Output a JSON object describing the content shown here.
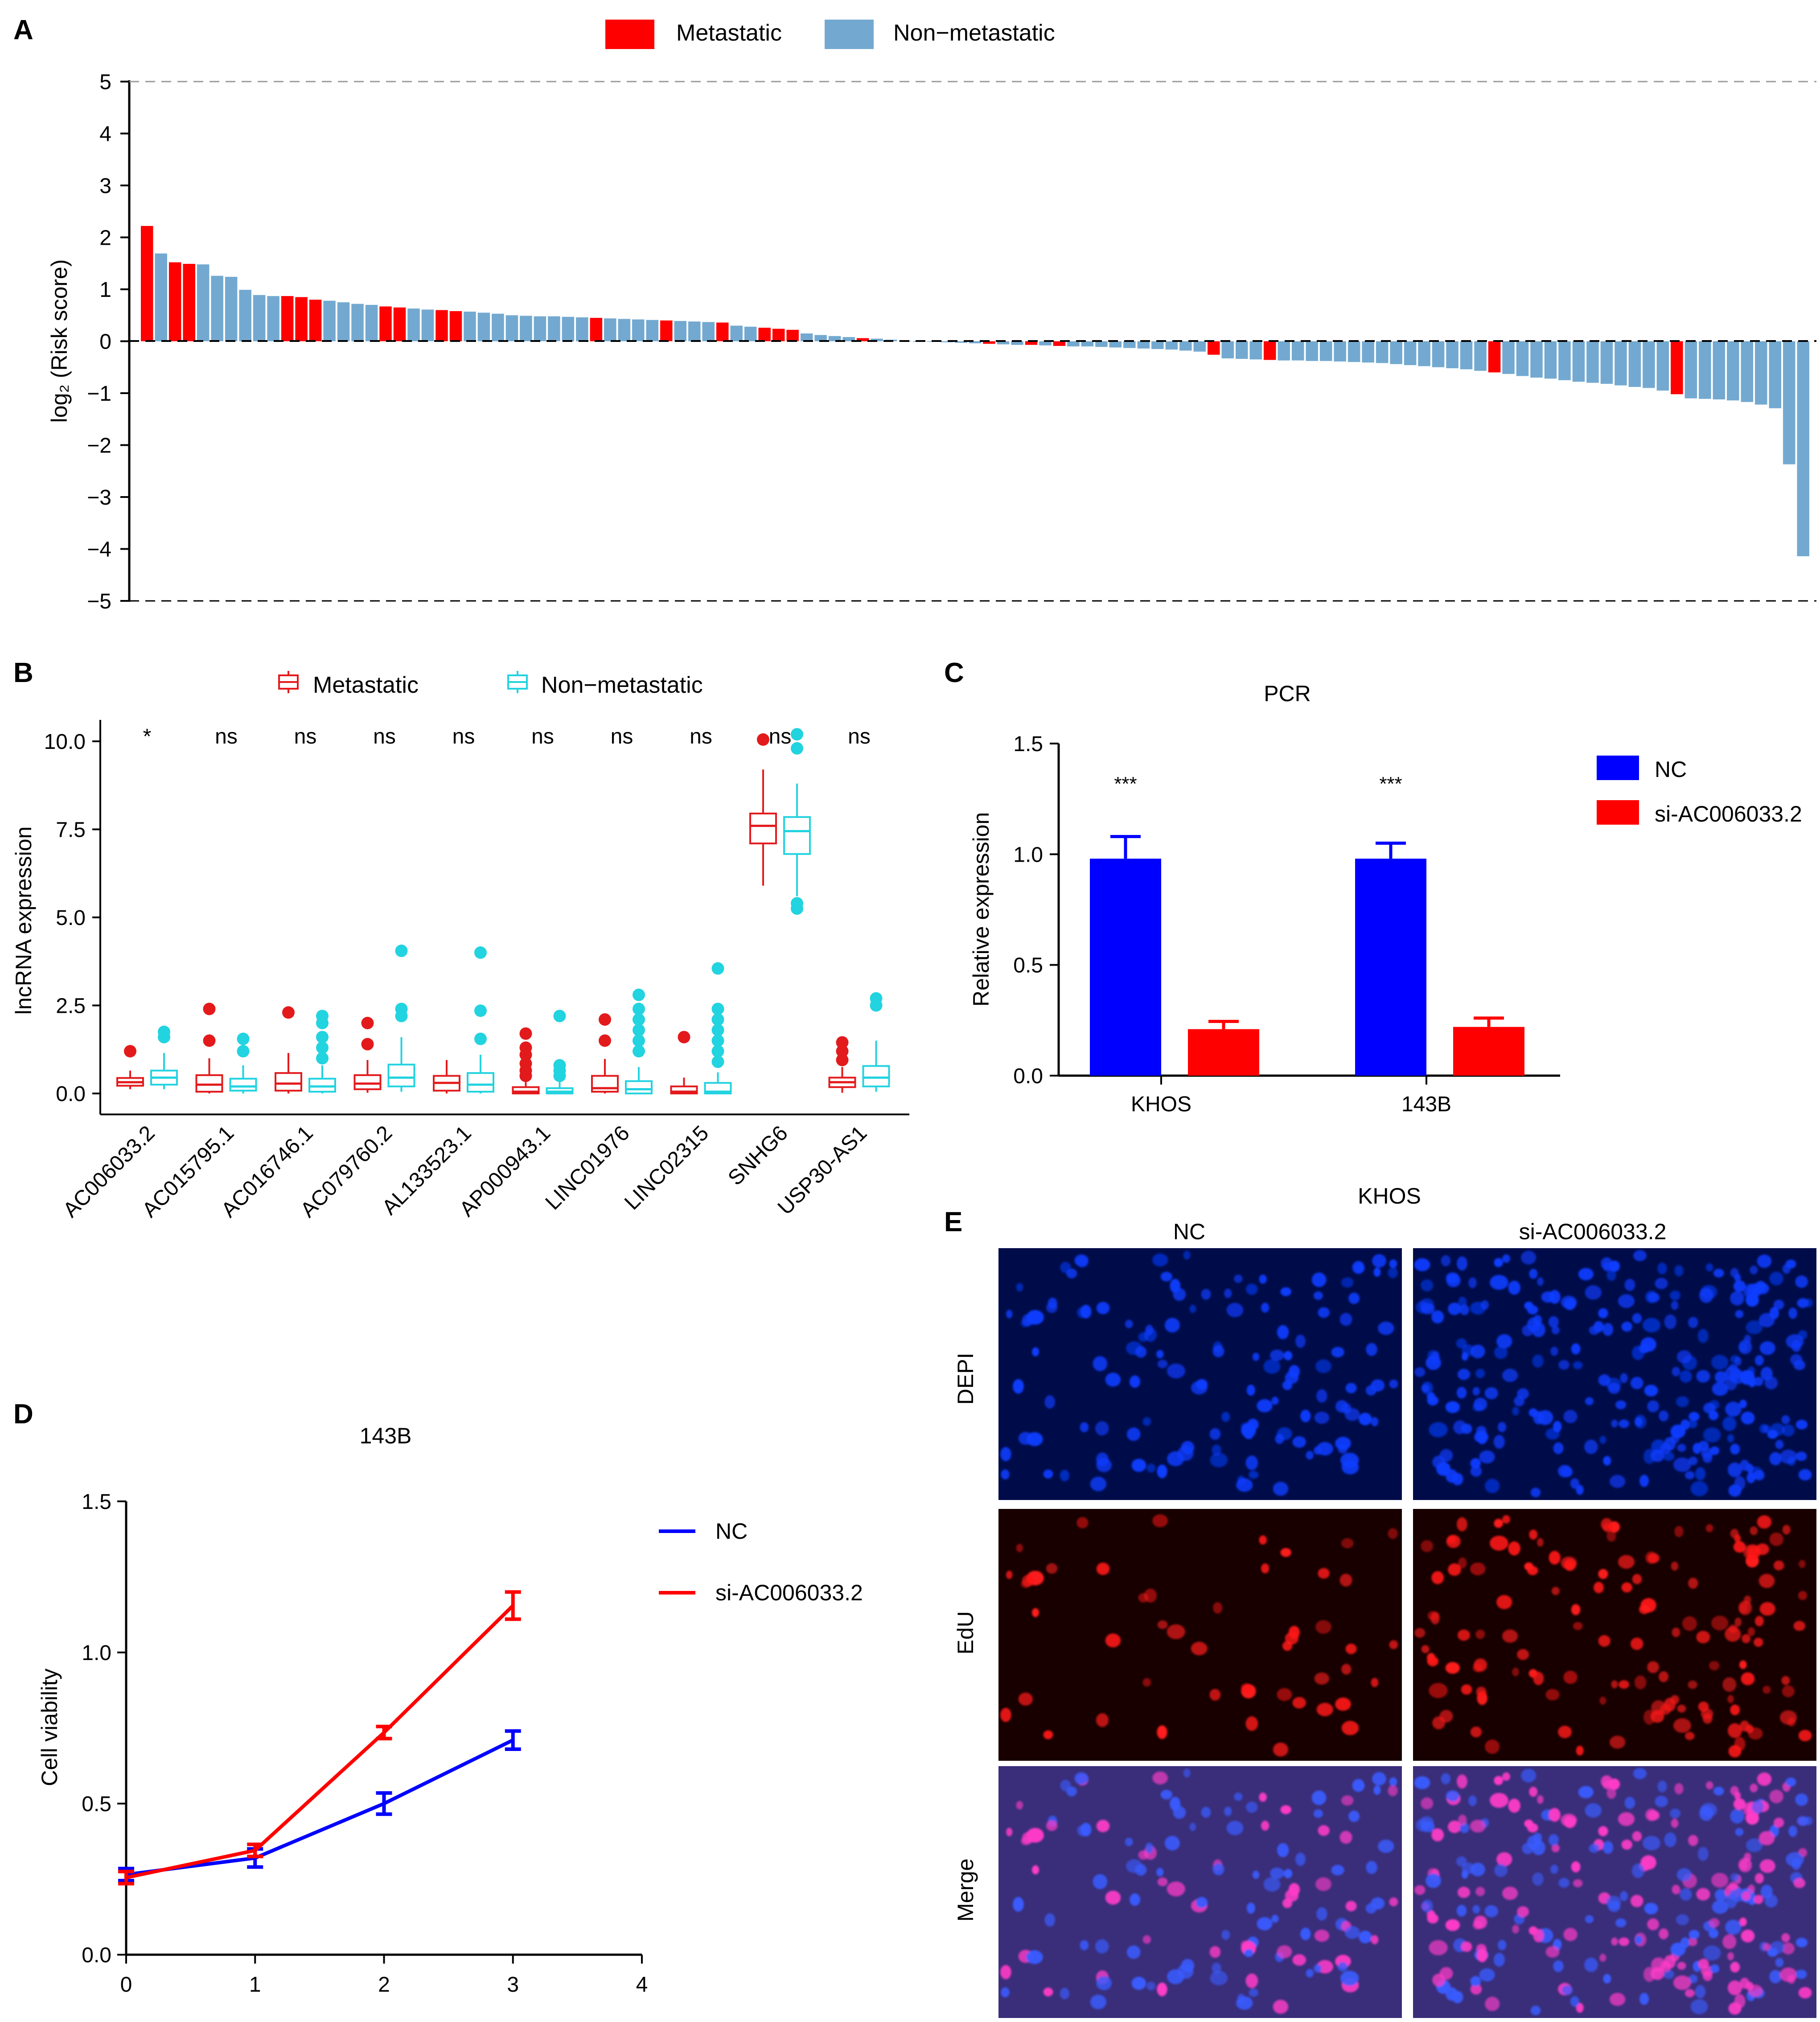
{
  "colors": {
    "metastatic": "#ff0000",
    "non_metastatic": "#73a9d0",
    "box_metastatic": "#e31a1c",
    "box_non_metastatic": "#22d3e0",
    "nc": "#0000ff",
    "si": "#ff0000",
    "dapi": "#0a3dff",
    "edu": "#ff1a1a",
    "merge_bg": "#3a2e7a"
  },
  "chart_data": [
    {
      "panel": "A",
      "type": "bar",
      "title": "",
      "xlabel": "",
      "ylabel": "log₂ (Risk score)",
      "ylim": [
        -5,
        5
      ],
      "yticks": [
        "5",
        "4",
        "3",
        "2",
        "1",
        "0",
        "−1",
        "−2",
        "−3",
        "−4",
        "−5"
      ],
      "legend": [
        "Metastatic",
        "Non−metastatic"
      ],
      "legend_position": "top",
      "series_groups": "M = Metastatic, N = Non-metastatic",
      "values": [
        2.22,
        1.69,
        1.52,
        1.49,
        1.48,
        1.26,
        1.24,
        0.99,
        0.89,
        0.87,
        0.87,
        0.85,
        0.8,
        0.78,
        0.75,
        0.72,
        0.7,
        0.67,
        0.65,
        0.63,
        0.61,
        0.6,
        0.58,
        0.57,
        0.55,
        0.53,
        0.5,
        0.49,
        0.48,
        0.48,
        0.47,
        0.46,
        0.45,
        0.44,
        0.43,
        0.42,
        0.41,
        0.4,
        0.39,
        0.38,
        0.37,
        0.36,
        0.3,
        0.28,
        0.26,
        0.24,
        0.22,
        0.15,
        0.12,
        0.1,
        0.08,
        0.06,
        0.05,
        0.03,
        0.01,
        0.0,
        -0.01,
        -0.02,
        -0.03,
        -0.04,
        -0.05,
        -0.06,
        -0.07,
        -0.07,
        -0.08,
        -0.09,
        -0.1,
        -0.1,
        -0.11,
        -0.12,
        -0.13,
        -0.14,
        -0.15,
        -0.16,
        -0.18,
        -0.2,
        -0.26,
        -0.33,
        -0.34,
        -0.35,
        -0.36,
        -0.37,
        -0.37,
        -0.38,
        -0.38,
        -0.39,
        -0.4,
        -0.41,
        -0.42,
        -0.44,
        -0.46,
        -0.48,
        -0.5,
        -0.52,
        -0.54,
        -0.57,
        -0.6,
        -0.63,
        -0.67,
        -0.7,
        -0.72,
        -0.75,
        -0.78,
        -0.8,
        -0.82,
        -0.85,
        -0.88,
        -0.9,
        -0.95,
        -1.02,
        -1.1,
        -1.11,
        -1.12,
        -1.14,
        -1.17,
        -1.22,
        -1.29,
        -2.37,
        -4.14
      ],
      "groups": "MNMMNNNNNNMMMNNNNMMNNMMNNNNNNNNNMNNNNMNNNMNNMMMNNNNMNNNNNNNNMNNMNMNNNNNNNNNNMNNNMNNNNNNNNNNNNNNNMNNNNNNNNNNNNMNNNNNNNN"
    },
    {
      "panel": "B",
      "type": "box",
      "ylabel": "lncRNA expression",
      "ylim": [
        0,
        10
      ],
      "yticks": [
        "10.0",
        "7.5",
        "5.0",
        "2.5",
        "0.0"
      ],
      "legend": [
        "Metastatic",
        "Non−metastatic"
      ],
      "legend_position": "top",
      "categories": [
        "AC006033.2",
        "AC015795.1",
        "AC016746.1",
        "AC079760.2",
        "AL133523.1",
        "AP000943.1",
        "LINC01976",
        "LINC02315",
        "SNHG6",
        "USP30-AS1"
      ],
      "significance": [
        "*",
        "ns",
        "ns",
        "ns",
        "ns",
        "ns",
        "ns",
        "ns",
        "ns",
        "ns"
      ],
      "series": [
        {
          "name": "Metastatic",
          "boxes": [
            {
              "min": 0.12,
              "q1": 0.22,
              "median": 0.32,
              "q3": 0.44,
              "max": 0.65,
              "outliers": [
                1.2
              ]
            },
            {
              "min": 0.0,
              "q1": 0.05,
              "median": 0.25,
              "q3": 0.52,
              "max": 1.0,
              "outliers": [
                1.5,
                2.4
              ]
            },
            {
              "min": 0.0,
              "q1": 0.08,
              "median": 0.28,
              "q3": 0.58,
              "max": 1.15,
              "outliers": [
                2.3
              ]
            },
            {
              "min": 0.02,
              "q1": 0.12,
              "median": 0.28,
              "q3": 0.52,
              "max": 0.95,
              "outliers": [
                1.4,
                2.0
              ]
            },
            {
              "min": 0.0,
              "q1": 0.08,
              "median": 0.3,
              "q3": 0.5,
              "max": 0.95,
              "outliers": []
            },
            {
              "min": 0.0,
              "q1": 0.0,
              "median": 0.05,
              "q3": 0.18,
              "max": 0.4,
              "outliers": [
                0.5,
                0.65,
                0.85,
                1.1,
                1.3,
                1.7
              ]
            },
            {
              "min": 0.0,
              "q1": 0.05,
              "median": 0.15,
              "q3": 0.5,
              "max": 0.98,
              "outliers": [
                1.5,
                2.1
              ]
            },
            {
              "min": 0.0,
              "q1": 0.0,
              "median": 0.05,
              "q3": 0.2,
              "max": 0.45,
              "outliers": [
                1.6
              ]
            },
            {
              "min": 5.9,
              "q1": 7.1,
              "median": 7.6,
              "q3": 7.95,
              "max": 9.2,
              "outliers": [
                10.05
              ]
            },
            {
              "min": 0.02,
              "q1": 0.18,
              "median": 0.32,
              "q3": 0.45,
              "max": 0.75,
              "outliers": [
                0.95,
                1.2,
                1.45
              ]
            }
          ]
        },
        {
          "name": "Non−metastatic",
          "boxes": [
            {
              "min": 0.12,
              "q1": 0.25,
              "median": 0.45,
              "q3": 0.65,
              "max": 1.15,
              "outliers": [
                1.6,
                1.75
              ]
            },
            {
              "min": 0.0,
              "q1": 0.08,
              "median": 0.2,
              "q3": 0.42,
              "max": 0.8,
              "outliers": [
                1.2,
                1.55
              ]
            },
            {
              "min": 0.0,
              "q1": 0.05,
              "median": 0.2,
              "q3": 0.42,
              "max": 0.8,
              "outliers": [
                1.0,
                1.3,
                1.6,
                2.0,
                2.2
              ]
            },
            {
              "min": 0.05,
              "q1": 0.2,
              "median": 0.45,
              "q3": 0.82,
              "max": 1.6,
              "outliers": [
                2.2,
                2.4,
                4.05
              ]
            },
            {
              "min": 0.0,
              "q1": 0.05,
              "median": 0.25,
              "q3": 0.58,
              "max": 1.1,
              "outliers": [
                1.55,
                2.35,
                4.0
              ]
            },
            {
              "min": 0.0,
              "q1": 0.0,
              "median": 0.05,
              "q3": 0.15,
              "max": 0.35,
              "outliers": [
                0.5,
                0.65,
                0.8,
                2.2
              ]
            },
            {
              "min": 0.0,
              "q1": 0.0,
              "median": 0.12,
              "q3": 0.35,
              "max": 0.75,
              "outliers": [
                1.2,
                1.5,
                1.8,
                2.1,
                2.4,
                2.8
              ]
            },
            {
              "min": 0.0,
              "q1": 0.0,
              "median": 0.05,
              "q3": 0.3,
              "max": 0.6,
              "outliers": [
                0.9,
                1.2,
                1.5,
                1.8,
                2.1,
                2.4,
                3.55
              ]
            },
            {
              "min": 5.6,
              "q1": 6.8,
              "median": 7.45,
              "q3": 7.85,
              "max": 8.8,
              "outliers": [
                5.25,
                5.4,
                9.8,
                10.2
              ]
            },
            {
              "min": 0.05,
              "q1": 0.2,
              "median": 0.45,
              "q3": 0.78,
              "max": 1.5,
              "outliers": [
                2.5,
                2.7
              ]
            }
          ]
        }
      ]
    },
    {
      "panel": "C",
      "type": "bar",
      "title": "PCR",
      "ylabel": "Relative expression",
      "ylim": [
        0,
        1.5
      ],
      "yticks": [
        "1.5",
        "1.0",
        "0.5",
        "0.0"
      ],
      "categories": [
        "KHOS",
        "143B"
      ],
      "legend": [
        "NC",
        "si-AC006033.2"
      ],
      "legend_position": "right",
      "significance": [
        "***",
        "***"
      ],
      "series": [
        {
          "name": "NC",
          "values": [
            0.98,
            0.98
          ],
          "errors": [
            0.1,
            0.07
          ]
        },
        {
          "name": "si-AC006033.2",
          "values": [
            0.21,
            0.22
          ],
          "errors": [
            0.035,
            0.04
          ]
        }
      ]
    },
    {
      "panel": "D",
      "type": "line",
      "title": "143B",
      "ylabel": "Cell viability",
      "ylim": [
        0,
        1.5
      ],
      "xlim": [
        0,
        4
      ],
      "yticks": [
        "1.5",
        "1.0",
        "0.5",
        "0.0"
      ],
      "xticks": [
        "0",
        "1",
        "2",
        "3",
        "4"
      ],
      "legend": [
        "NC",
        "si-AC006033.2"
      ],
      "legend_position": "right",
      "x": [
        0,
        1,
        2,
        3
      ],
      "series": [
        {
          "name": "NC",
          "values": [
            0.265,
            0.32,
            0.5,
            0.71
          ],
          "errors": [
            0.02,
            0.03,
            0.035,
            0.03
          ]
        },
        {
          "name": "si-AC006033.2",
          "values": [
            0.255,
            0.345,
            0.735,
            1.155
          ],
          "errors": [
            0.02,
            0.02,
            0.02,
            0.045
          ]
        }
      ]
    }
  ],
  "panel_labels": {
    "a": "A",
    "b": "B",
    "c": "C",
    "d": "D",
    "e": "E"
  },
  "panel_e": {
    "title": "KHOS",
    "columns": [
      "NC",
      "si-AC006033.2"
    ],
    "rows": [
      "DEPI",
      "EdU",
      "Merge"
    ]
  }
}
